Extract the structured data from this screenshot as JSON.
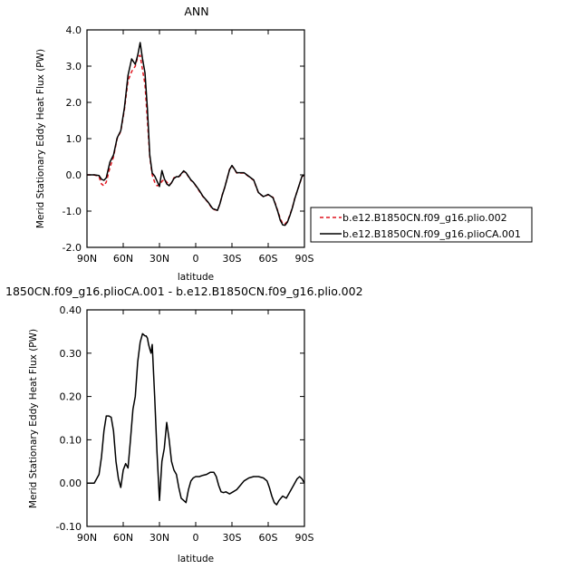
{
  "chart_data": [
    {
      "type": "line",
      "title": "ANN",
      "xlabel": "latitude",
      "ylabel": "Merid Stationary Eddy Heat Flux (PW)",
      "x_ticks": [
        90,
        60,
        30,
        0,
        -30,
        -60,
        -90
      ],
      "x_tick_labels": [
        "90N",
        "60N",
        "30N",
        "0",
        "30S",
        "60S",
        "90S"
      ],
      "xlim": [
        90,
        -90
      ],
      "y_ticks": [
        -2.0,
        -1.0,
        0.0,
        1.0,
        2.0,
        3.0,
        4.0
      ],
      "y_tick_labels": [
        "-2.0",
        "-1.0",
        "0.0",
        "1.0",
        "2.0",
        "3.0",
        "4.0"
      ],
      "ylim": [
        -2.0,
        4.0
      ],
      "legend_position": "right",
      "series": [
        {
          "name": "b.e12.B1850CN.f09_g16.plio.002",
          "color": "#e0141e",
          "dash": true,
          "x": [
            90,
            84,
            80,
            78,
            76,
            74,
            71,
            68,
            65,
            62,
            59,
            56,
            53,
            50,
            48,
            46,
            44,
            42,
            40,
            38,
            36,
            34,
            32,
            30,
            28,
            26,
            24,
            22,
            20,
            18,
            16,
            14,
            12,
            10,
            8,
            6,
            4,
            2,
            0,
            -3,
            -6,
            -10,
            -14,
            -18,
            -20,
            -22,
            -24,
            -26,
            -28,
            -30,
            -32,
            -34,
            -36,
            -40,
            -44,
            -48,
            -52,
            -56,
            -60,
            -64,
            -66,
            -68,
            -70,
            -72,
            -74,
            -76,
            -78,
            -80,
            -82,
            -84,
            -86,
            -88,
            -90
          ],
          "y": [
            0.0,
            0.0,
            -0.05,
            -0.25,
            -0.3,
            -0.2,
            0.2,
            0.5,
            1.0,
            1.2,
            1.8,
            2.6,
            2.85,
            3.0,
            3.25,
            3.3,
            2.9,
            2.5,
            1.5,
            0.5,
            0.0,
            -0.2,
            -0.3,
            -0.28,
            -0.18,
            -0.12,
            -0.2,
            -0.28,
            -0.22,
            -0.08,
            -0.05,
            -0.05,
            0.0,
            0.1,
            0.05,
            -0.05,
            -0.15,
            -0.2,
            -0.3,
            -0.45,
            -0.6,
            -0.75,
            -0.95,
            -0.98,
            -0.8,
            -0.55,
            -0.35,
            -0.1,
            0.15,
            0.25,
            0.15,
            0.05,
            0.05,
            0.05,
            -0.05,
            -0.15,
            -0.5,
            -0.6,
            -0.55,
            -0.62,
            -0.8,
            -1.0,
            -1.2,
            -1.35,
            -1.35,
            -1.28,
            -1.1,
            -0.9,
            -0.65,
            -0.45,
            -0.25,
            -0.05,
            0.0
          ]
        },
        {
          "name": "b.e12.B1850CN.f09_g16.plioCA.001",
          "color": "#000000",
          "dash": false,
          "x": [
            90,
            84,
            80,
            78,
            76,
            74,
            71,
            68,
            65,
            62,
            59,
            56,
            53,
            50,
            48,
            46,
            44,
            42,
            40,
            38,
            36,
            34,
            32,
            30,
            28,
            26,
            24,
            22,
            20,
            18,
            16,
            14,
            12,
            10,
            8,
            6,
            4,
            2,
            0,
            -3,
            -6,
            -10,
            -14,
            -18,
            -20,
            -22,
            -24,
            -26,
            -28,
            -30,
            -32,
            -34,
            -36,
            -40,
            -44,
            -48,
            -52,
            -56,
            -60,
            -64,
            -66,
            -68,
            -70,
            -72,
            -74,
            -76,
            -78,
            -80,
            -82,
            -84,
            -86,
            -88,
            -90
          ],
          "y": [
            0.0,
            0.0,
            -0.02,
            -0.12,
            -0.15,
            -0.08,
            0.35,
            0.55,
            1.02,
            1.22,
            1.85,
            2.75,
            3.2,
            3.05,
            3.3,
            3.65,
            3.2,
            2.82,
            1.82,
            0.55,
            0.05,
            -0.03,
            -0.17,
            -0.32,
            0.12,
            -0.1,
            -0.25,
            -0.3,
            -0.22,
            -0.1,
            -0.05,
            -0.05,
            0.03,
            0.11,
            0.06,
            -0.04,
            -0.14,
            -0.2,
            -0.29,
            -0.43,
            -0.59,
            -0.74,
            -0.93,
            -0.98,
            -0.8,
            -0.56,
            -0.35,
            -0.1,
            0.14,
            0.26,
            0.16,
            0.06,
            0.06,
            0.06,
            -0.04,
            -0.14,
            -0.49,
            -0.6,
            -0.54,
            -0.63,
            -0.82,
            -1.02,
            -1.25,
            -1.38,
            -1.39,
            -1.3,
            -1.12,
            -0.91,
            -0.66,
            -0.45,
            -0.24,
            -0.04,
            0.0
          ]
        }
      ]
    },
    {
      "type": "line",
      "title": "1850CN.f09_g16.plioCA.001 - b.e12.B1850CN.f09_g16.plio.002",
      "xlabel": "latitude",
      "ylabel": "Merid Stationary Eddy Heat Flux (PW)",
      "x_ticks": [
        90,
        60,
        30,
        0,
        -30,
        -60,
        -90
      ],
      "x_tick_labels": [
        "90N",
        "60N",
        "30N",
        "0",
        "30S",
        "60S",
        "90S"
      ],
      "xlim": [
        90,
        -90
      ],
      "y_ticks": [
        -0.1,
        0.0,
        0.1,
        0.2,
        0.3,
        0.4
      ],
      "y_tick_labels": [
        "-0.10",
        "0.00",
        "0.10",
        "0.20",
        "0.30",
        "0.40"
      ],
      "ylim": [
        -0.1,
        0.4
      ],
      "series": [
        {
          "color": "#000000",
          "dash": false,
          "x": [
            90,
            84,
            80,
            78,
            76,
            74,
            72,
            70,
            68,
            66,
            64,
            62,
            60,
            58,
            56,
            54,
            52,
            50,
            48,
            46,
            44,
            42,
            41,
            40,
            39,
            38,
            37,
            36,
            34,
            32,
            30,
            28,
            26,
            24,
            22,
            20,
            18,
            16,
            14,
            12,
            10,
            8,
            6,
            4,
            2,
            0,
            -3,
            -6,
            -9,
            -12,
            -15,
            -17,
            -19,
            -21,
            -23,
            -25,
            -28,
            -31,
            -34,
            -37,
            -40,
            -44,
            -48,
            -52,
            -56,
            -59,
            -61,
            -63,
            -65,
            -67,
            -69,
            -72,
            -75,
            -78,
            -81,
            -84,
            -86,
            -88,
            -90
          ],
          "y": [
            0.0,
            0.0,
            0.02,
            0.06,
            0.12,
            0.155,
            0.155,
            0.152,
            0.12,
            0.05,
            0.01,
            -0.01,
            0.03,
            0.045,
            0.035,
            0.1,
            0.17,
            0.2,
            0.28,
            0.325,
            0.345,
            0.34,
            0.34,
            0.335,
            0.32,
            0.31,
            0.3,
            0.32,
            0.2,
            0.07,
            -0.04,
            0.05,
            0.08,
            0.14,
            0.1,
            0.05,
            0.03,
            0.02,
            -0.01,
            -0.035,
            -0.04,
            -0.045,
            -0.015,
            0.005,
            0.012,
            0.015,
            0.015,
            0.018,
            0.02,
            0.025,
            0.025,
            0.015,
            -0.005,
            -0.02,
            -0.022,
            -0.02,
            -0.025,
            -0.02,
            -0.015,
            -0.005,
            0.005,
            0.012,
            0.015,
            0.015,
            0.012,
            0.005,
            -0.01,
            -0.03,
            -0.045,
            -0.05,
            -0.04,
            -0.03,
            -0.035,
            -0.02,
            -0.005,
            0.01,
            0.015,
            0.01,
            0.0
          ]
        }
      ]
    }
  ]
}
